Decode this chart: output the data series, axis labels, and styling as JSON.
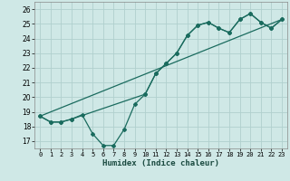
{
  "xlabel": "Humidex (Indice chaleur)",
  "xlim": [
    -0.5,
    23.5
  ],
  "ylim": [
    16.5,
    26.5
  ],
  "xticks": [
    0,
    1,
    2,
    3,
    4,
    5,
    6,
    7,
    8,
    9,
    10,
    11,
    12,
    13,
    14,
    15,
    16,
    17,
    18,
    19,
    20,
    21,
    22,
    23
  ],
  "yticks": [
    17,
    18,
    19,
    20,
    21,
    22,
    23,
    24,
    25,
    26
  ],
  "bg_color": "#cfe8e6",
  "grid_color": "#b0d0ce",
  "line_color": "#1a6b5e",
  "line1_x": [
    0,
    1,
    2,
    3,
    4,
    5,
    6,
    7,
    8,
    9,
    10,
    11,
    12,
    13,
    14,
    15,
    16,
    17,
    18,
    19,
    20,
    21,
    22,
    23
  ],
  "line1_y": [
    18.7,
    18.3,
    18.3,
    18.5,
    18.8,
    17.5,
    16.7,
    16.7,
    17.8,
    19.5,
    20.2,
    21.6,
    22.3,
    23.0,
    24.2,
    24.9,
    25.1,
    24.7,
    24.4,
    25.3,
    25.7,
    25.1,
    24.7,
    25.3
  ],
  "line2_x": [
    0,
    1,
    2,
    3,
    10,
    11,
    12,
    13,
    14,
    15,
    16,
    17,
    18,
    19,
    20,
    21,
    22,
    23
  ],
  "line2_y": [
    18.7,
    18.3,
    18.3,
    18.5,
    20.2,
    21.6,
    22.3,
    23.0,
    24.2,
    24.9,
    25.1,
    24.7,
    24.4,
    25.3,
    25.7,
    25.1,
    24.7,
    25.3
  ],
  "line3_x": [
    0,
    23
  ],
  "line3_y": [
    18.7,
    25.3
  ]
}
